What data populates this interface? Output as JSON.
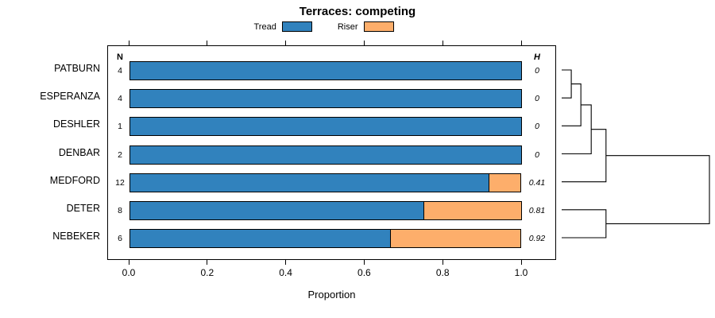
{
  "title": "Terraces: competing",
  "legend": [
    {
      "label": "Tread",
      "color": "#3182bd"
    },
    {
      "label": "Riser",
      "color": "#fdae6b"
    }
  ],
  "columns": {
    "n_header": "N",
    "h_header": "H"
  },
  "axis": {
    "xlabel": "Proportion",
    "tick_labels": [
      "0.0",
      "0.2",
      "0.4",
      "0.6",
      "0.8",
      "1.0"
    ],
    "tick_values": [
      0,
      0.2,
      0.4,
      0.6,
      0.8,
      1.0
    ]
  },
  "chart_data": {
    "type": "bar",
    "orientation": "horizontal",
    "stacked": true,
    "title": "Terraces: competing",
    "xlabel": "Proportion",
    "xlim": [
      0,
      1
    ],
    "categories": [
      "PATBURN",
      "ESPERANZA",
      "DESHLER",
      "DENBAR",
      "MEDFORD",
      "DETER",
      "NEBEKER"
    ],
    "n": [
      4,
      4,
      1,
      2,
      12,
      8,
      6
    ],
    "h": [
      "0",
      "0",
      "0",
      "0",
      "0.41",
      "0.81",
      "0.92"
    ],
    "series": [
      {
        "name": "Tread",
        "color": "#3182bd",
        "values": [
          1.0,
          1.0,
          1.0,
          1.0,
          0.917,
          0.75,
          0.667
        ]
      },
      {
        "name": "Riser",
        "color": "#fdae6b",
        "values": [
          0.0,
          0.0,
          0.0,
          0.0,
          0.083,
          0.25,
          0.333
        ]
      }
    ],
    "legend_position": "top"
  },
  "dendrogram": {
    "leaves": [
      "PATBURN",
      "ESPERANZA",
      "DESHLER",
      "DENBAR",
      "MEDFORD",
      "DETER",
      "NEBEKER"
    ],
    "merges": [
      {
        "a": "L0",
        "b": "L1",
        "h": 0.065
      },
      {
        "a": "M0",
        "b": "L2",
        "h": 0.13
      },
      {
        "a": "M1",
        "b": "L3",
        "h": 0.2
      },
      {
        "a": "M2",
        "b": "L4",
        "h": 0.3
      },
      {
        "a": "L5",
        "b": "L6",
        "h": 0.3
      },
      {
        "a": "M3",
        "b": "M4",
        "h": 1.0
      }
    ]
  }
}
